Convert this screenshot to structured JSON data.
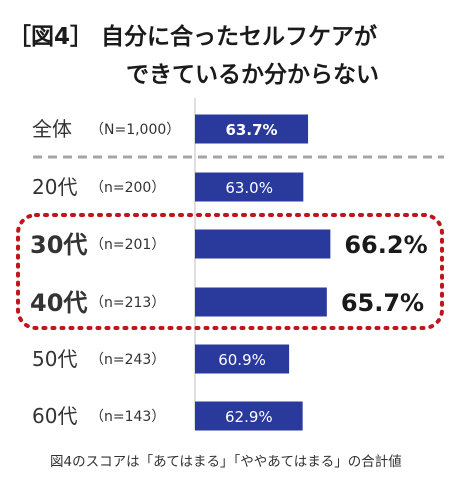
{
  "chart_data": {
    "type": "bar",
    "orientation": "horizontal",
    "title_line1": "［図4］ 自分に合ったセルフケアが",
    "title_line2": "できているか分からない",
    "categories": [
      "全体",
      "20代",
      "30代",
      "40代",
      "50代",
      "60代"
    ],
    "sample_sizes": [
      "（N=1,000）",
      "（n=200）",
      "（n=201）",
      "（n=213）",
      "（n=243）",
      "（n=143）"
    ],
    "values": [
      63.7,
      63.0,
      66.2,
      65.7,
      60.9,
      62.9
    ],
    "value_labels": [
      "63.7%",
      "63.0%",
      "66.2%",
      "65.7%",
      "60.9%",
      "62.9%"
    ],
    "highlighted": [
      "30代",
      "40代"
    ],
    "footnote": "図4のスコアは「あてはまる」「ややあてはまる」の合計値",
    "bar_color": "#2a3a9c",
    "highlight_color": "#c0151b",
    "divider_color": "#a6a6a6"
  }
}
